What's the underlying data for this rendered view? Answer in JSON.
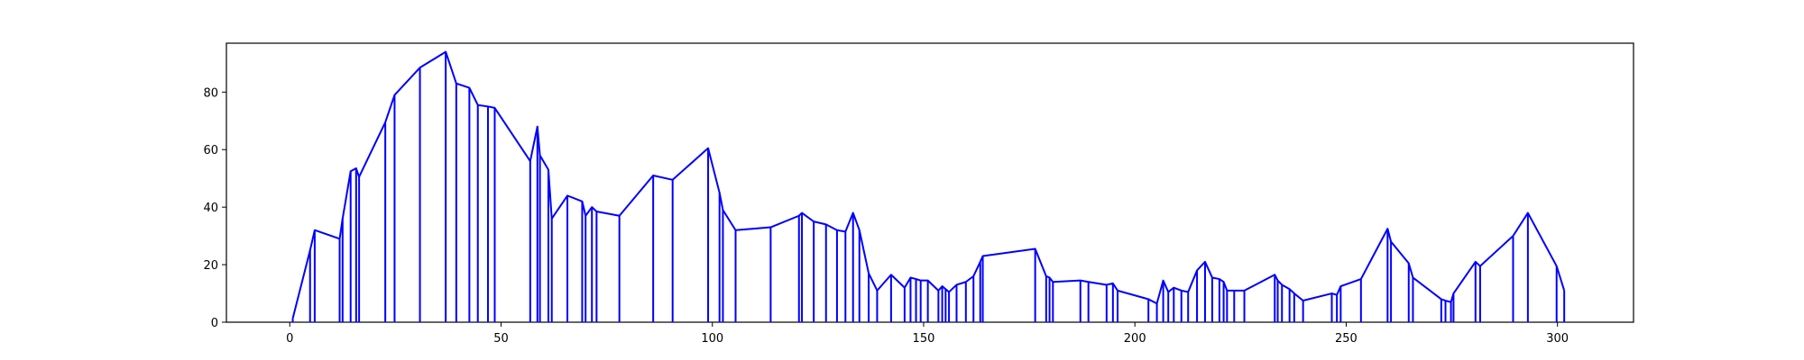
{
  "colors": {
    "line": "#0000ff",
    "axes": "#000000",
    "background": "#ffffff"
  },
  "chart_data": {
    "type": "line",
    "style": "stem-with-connecting-line",
    "title": "",
    "xlabel": "",
    "ylabel": "",
    "xlim": [
      -15,
      318
    ],
    "ylim": [
      0,
      97
    ],
    "grid": false,
    "legend": "none",
    "x_ticks": [
      0,
      50,
      100,
      150,
      200,
      250,
      300
    ],
    "y_ticks": [
      0,
      20,
      40,
      60,
      80
    ],
    "x_tick_labels": [
      "0",
      "50",
      "100",
      "150",
      "200",
      "250",
      "300"
    ],
    "y_tick_labels": [
      "0",
      "20",
      "40",
      "60",
      "80"
    ],
    "series": [
      {
        "x": [
          0.7,
          4.8,
          5.9,
          11.8,
          12.5,
          14.4,
          15.7,
          16.4,
          22.6,
          24.8,
          30.8,
          36.9,
          39.4,
          42.5,
          44.5,
          46.9,
          48.5,
          56.9,
          58.6,
          59.2,
          61.2,
          62.0,
          65.7,
          69.2,
          70.0,
          71.5,
          72.6,
          78.0,
          86.0,
          90.6,
          99.0,
          101.7,
          102.5,
          105.5,
          113.8,
          120.5,
          121.2,
          124.0,
          126.9,
          129.5,
          131.5,
          133.3,
          134.8,
          137.0,
          139.0,
          142.3,
          145.5,
          146.9,
          148.2,
          149.3,
          151.0,
          153.5,
          154.4,
          155.2,
          156.0,
          157.8,
          160.0,
          161.8,
          163.4,
          164.0,
          176.4,
          179.0,
          179.8,
          180.6,
          187.1,
          189.0,
          193.3,
          194.8,
          195.9,
          203.2,
          205.2,
          206.7,
          207.9,
          209.2,
          211.0,
          212.6,
          214.7,
          216.6,
          218.3,
          220.0,
          221.0,
          221.8,
          223.5,
          225.9,
          233.1,
          233.8,
          234.8,
          236.6,
          237.7,
          239.8,
          246.6,
          247.8,
          248.7,
          253.5,
          259.8,
          260.6,
          264.8,
          265.8,
          272.5,
          273.5,
          274.8,
          275.4,
          280.6,
          281.7,
          289.5,
          293.0,
          299.8,
          301.6
        ],
        "y": [
          1.3,
          25.0,
          32.0,
          29.0,
          36.0,
          52.5,
          53.5,
          50.5,
          69.5,
          79.0,
          88.5,
          94.0,
          83.0,
          81.5,
          75.5,
          75.0,
          74.5,
          56.0,
          68.0,
          58.0,
          53.0,
          36.0,
          44.0,
          42.0,
          37.0,
          40.0,
          38.5,
          37.0,
          51.0,
          49.5,
          60.5,
          45.0,
          39.0,
          32.0,
          33.0,
          37.0,
          38.0,
          35.0,
          34.0,
          32.0,
          31.5,
          38.0,
          32.0,
          17.0,
          11.0,
          16.5,
          12.0,
          15.5,
          15.0,
          14.5,
          14.5,
          11.0,
          12.5,
          11.5,
          10.5,
          13.0,
          14.0,
          16.0,
          21.0,
          23.0,
          25.5,
          16.0,
          15.5,
          14.0,
          14.5,
          14.0,
          13.0,
          13.5,
          11.0,
          8.0,
          6.5,
          14.5,
          10.5,
          12.0,
          11.0,
          10.5,
          18.0,
          21.0,
          15.5,
          15.0,
          14.0,
          11.0,
          11.0,
          11.0,
          16.5,
          14.5,
          13.0,
          11.5,
          10.0,
          7.5,
          10.0,
          9.5,
          12.5,
          15.0,
          32.5,
          28.0,
          20.5,
          15.5,
          8.0,
          7.5,
          7.0,
          10.0,
          21.0,
          19.5,
          30.0,
          38.0,
          19.5,
          11.0
        ]
      }
    ]
  }
}
